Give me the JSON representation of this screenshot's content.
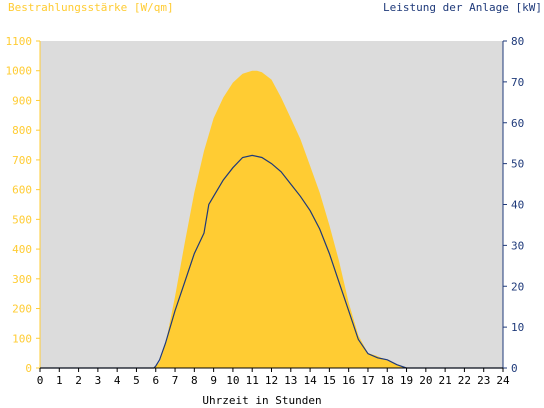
{
  "chart_data": {
    "type": "area",
    "ylabel_left": "Bestrahlungsstärke [W/qm]",
    "ylabel_right": "Leistung der Anlage [kW]",
    "xlabel": "Uhrzeit in Stunden",
    "x_ticks": [
      "0",
      "1",
      "2",
      "3",
      "4",
      "5",
      "6",
      "7",
      "8",
      "9",
      "10",
      "11",
      "12",
      "13",
      "14",
      "15",
      "16",
      "17",
      "18",
      "19",
      "20",
      "21",
      "22",
      "23",
      "24"
    ],
    "y_left_ticks": [
      "0",
      "100",
      "200",
      "300",
      "400",
      "500",
      "600",
      "700",
      "800",
      "900",
      "1000",
      "1100"
    ],
    "y_right_ticks": [
      "0",
      "10",
      "20",
      "30",
      "40",
      "50",
      "60",
      "70",
      "80"
    ],
    "xlim": [
      0,
      24
    ],
    "ylim_left": [
      0,
      1100
    ],
    "ylim_right": [
      0,
      80
    ],
    "grid": false,
    "colors": {
      "irradiance": "#ffcc33",
      "power": "#1f3a7a",
      "plot_bg": "#dcdcdc",
      "left_axis": "#ffcc33",
      "right_axis": "#1f3a7a"
    },
    "series": [
      {
        "name": "Bestrahlungsstärke [W/qm]",
        "axis": "left",
        "style": "area",
        "x": [
          0,
          5.9,
          6.0,
          6.2,
          6.5,
          7,
          7.5,
          8,
          8.5,
          9,
          9.5,
          10,
          10.5,
          11,
          11.25,
          11.5,
          12,
          12.5,
          13,
          13.5,
          14,
          14.5,
          15,
          15.5,
          16,
          16.5,
          17,
          17.5,
          18,
          18.5,
          19,
          24
        ],
        "y": [
          0,
          0,
          5,
          20,
          80,
          240,
          420,
          590,
          730,
          840,
          910,
          960,
          990,
          1000,
          1000,
          995,
          970,
          910,
          840,
          770,
          680,
          590,
          480,
          360,
          220,
          110,
          50,
          40,
          25,
          10,
          0,
          0
        ]
      },
      {
        "name": "Leistung der Anlage [kW]",
        "axis": "right",
        "style": "line",
        "x": [
          0,
          5.9,
          6.0,
          6.2,
          6.5,
          7,
          7.5,
          8,
          8.5,
          8.75,
          9,
          9.5,
          10,
          10.5,
          11,
          11.5,
          12,
          12.5,
          13,
          13.5,
          14,
          14.5,
          15,
          15.5,
          16,
          16.5,
          17,
          17.5,
          18,
          18.5,
          19,
          24
        ],
        "y": [
          0,
          0,
          0.5,
          2,
          6,
          14,
          21,
          28,
          33,
          40,
          42,
          46,
          49,
          51.5,
          52,
          51.5,
          50,
          48,
          45,
          42,
          38.5,
          34,
          28,
          21,
          14,
          7,
          3.5,
          2.5,
          2,
          0.8,
          0,
          0
        ]
      }
    ]
  }
}
